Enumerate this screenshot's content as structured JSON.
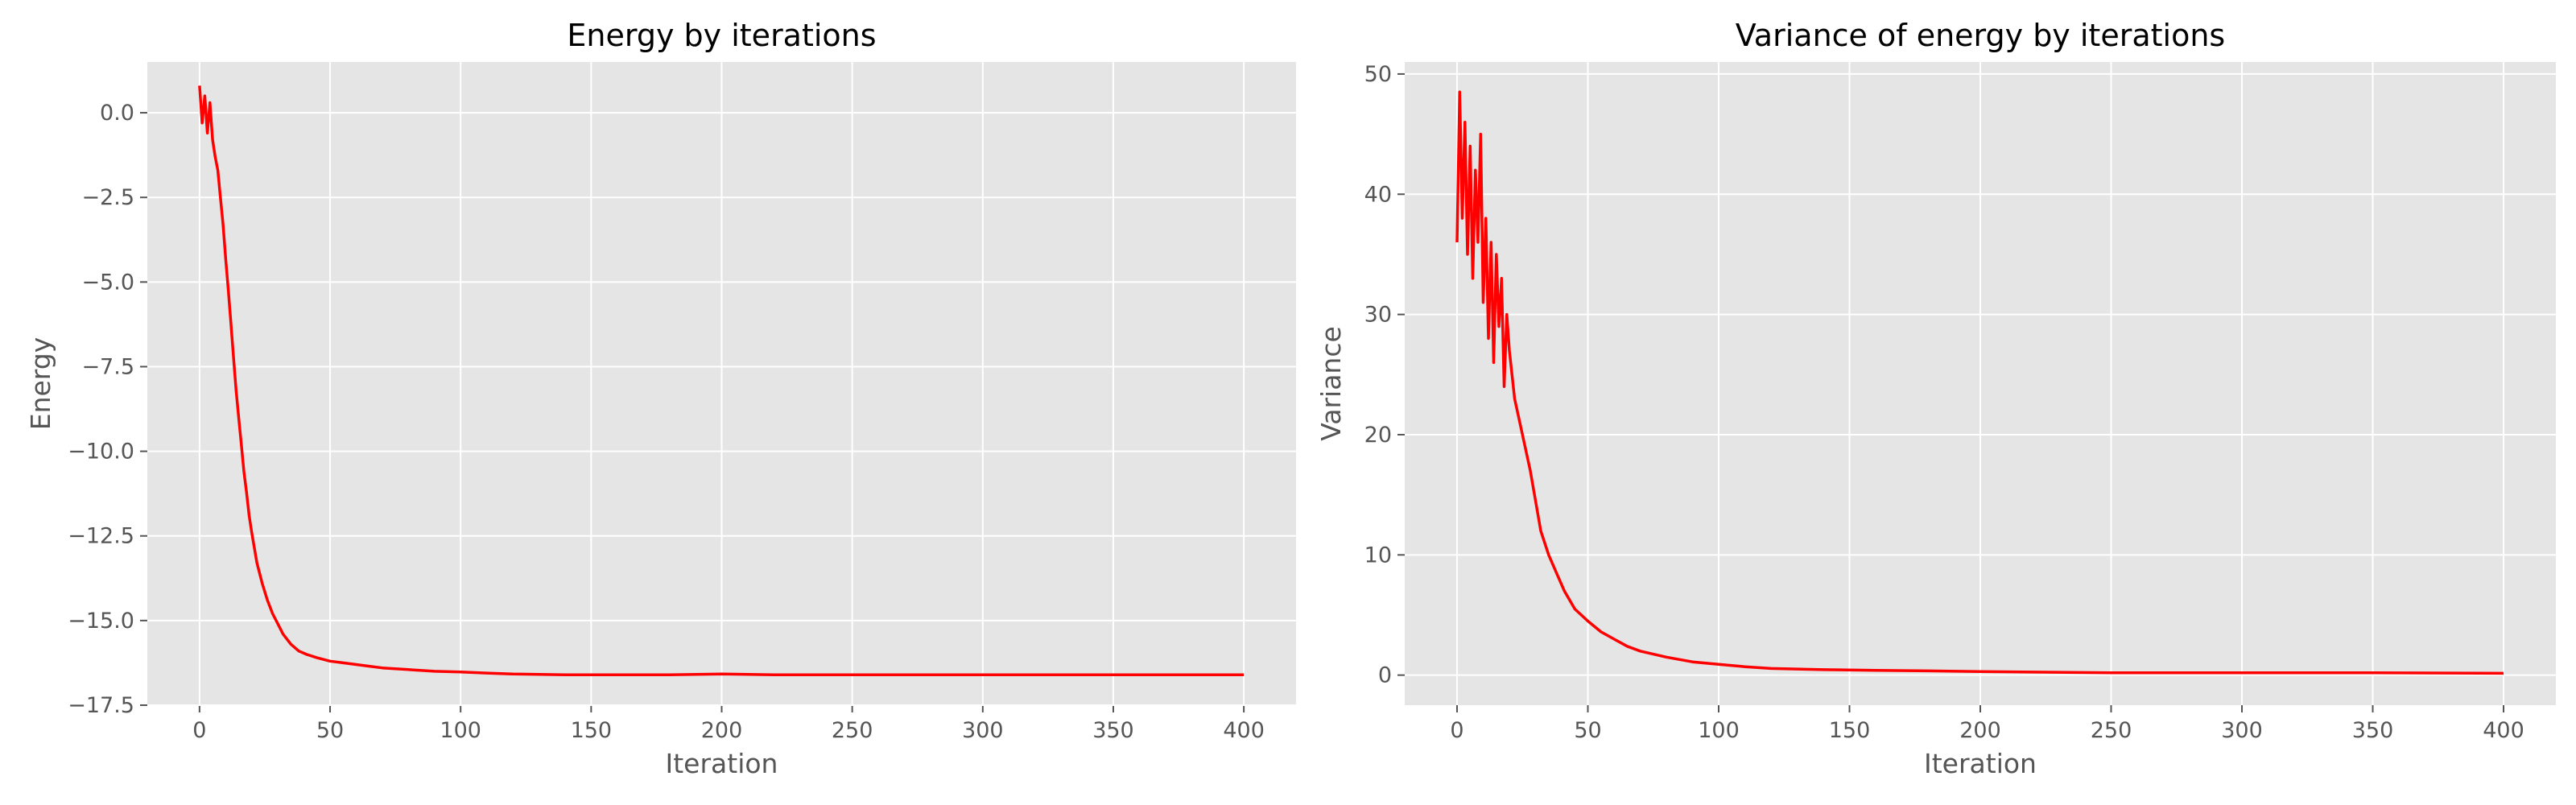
{
  "chart_data": [
    {
      "type": "line",
      "title": "Energy by iterations",
      "xlabel": "Iteration",
      "ylabel": "Energy",
      "xlim": [
        -20,
        420
      ],
      "ylim": [
        -17.5,
        1.5
      ],
      "xticks": [
        0,
        50,
        100,
        150,
        200,
        250,
        300,
        350,
        400
      ],
      "xtick_labels": [
        "0",
        "50",
        "100",
        "150",
        "200",
        "250",
        "300",
        "350",
        "400"
      ],
      "yticks": [
        0.0,
        -2.5,
        -5.0,
        -7.5,
        -10.0,
        -12.5,
        -15.0,
        -17.5
      ],
      "ytick_labels": [
        "0.0",
        "−2.5",
        "−5.0",
        "−7.5",
        "−10.0",
        "−12.5",
        "−15.0",
        "−17.5"
      ],
      "grid": true,
      "background": "#e5e5e5",
      "series": [
        {
          "color": "#ff0000",
          "x": [
            0,
            1,
            2,
            3,
            4,
            5,
            6,
            7,
            8,
            9,
            10,
            11,
            12,
            13,
            14,
            15,
            16,
            17,
            18,
            19,
            20,
            22,
            24,
            26,
            28,
            30,
            32,
            35,
            38,
            41,
            45,
            50,
            55,
            60,
            65,
            70,
            80,
            90,
            100,
            110,
            120,
            140,
            160,
            180,
            200,
            220,
            250,
            300,
            350,
            400
          ],
          "y": [
            0.8,
            -0.3,
            0.5,
            -0.6,
            0.3,
            -0.8,
            -1.3,
            -1.7,
            -2.5,
            -3.3,
            -4.3,
            -5.2,
            -6.2,
            -7.2,
            -8.2,
            -9.0,
            -9.8,
            -10.6,
            -11.2,
            -11.9,
            -12.4,
            -13.3,
            -13.9,
            -14.4,
            -14.8,
            -15.1,
            -15.4,
            -15.7,
            -15.9,
            -16.0,
            -16.1,
            -16.2,
            -16.25,
            -16.3,
            -16.35,
            -16.4,
            -16.45,
            -16.5,
            -16.52,
            -16.55,
            -16.58,
            -16.6,
            -16.6,
            -16.6,
            -16.58,
            -16.6,
            -16.6,
            -16.6,
            -16.6,
            -16.6
          ]
        }
      ]
    },
    {
      "type": "line",
      "title": "Variance of energy by iterations",
      "xlabel": "Iteration",
      "ylabel": "Variance",
      "xlim": [
        -20,
        420
      ],
      "ylim": [
        -2.5,
        51
      ],
      "xticks": [
        0,
        50,
        100,
        150,
        200,
        250,
        300,
        350,
        400
      ],
      "xtick_labels": [
        "0",
        "50",
        "100",
        "150",
        "200",
        "250",
        "300",
        "350",
        "400"
      ],
      "yticks": [
        0,
        10,
        20,
        30,
        40,
        50
      ],
      "ytick_labels": [
        "0",
        "10",
        "20",
        "30",
        "40",
        "50"
      ],
      "grid": true,
      "background": "#e5e5e5",
      "series": [
        {
          "color": "#ff0000",
          "x": [
            0,
            1,
            2,
            3,
            4,
            5,
            6,
            7,
            8,
            9,
            10,
            11,
            12,
            13,
            14,
            15,
            16,
            17,
            18,
            19,
            20,
            22,
            24,
            26,
            28,
            30,
            32,
            35,
            38,
            41,
            45,
            50,
            55,
            60,
            65,
            70,
            80,
            90,
            100,
            110,
            120,
            140,
            160,
            180,
            200,
            220,
            250,
            300,
            350,
            400
          ],
          "y": [
            36,
            48.5,
            38,
            46,
            35,
            44,
            33,
            42,
            36,
            45,
            31,
            38,
            28,
            36,
            26,
            35,
            29,
            33,
            24,
            30,
            27,
            23,
            21,
            19,
            17,
            14.5,
            12,
            10,
            8.5,
            7,
            5.5,
            4.5,
            3.6,
            3.0,
            2.4,
            2.0,
            1.5,
            1.1,
            0.9,
            0.7,
            0.55,
            0.45,
            0.4,
            0.35,
            0.3,
            0.25,
            0.2,
            0.2,
            0.2,
            0.15
          ]
        }
      ]
    }
  ]
}
